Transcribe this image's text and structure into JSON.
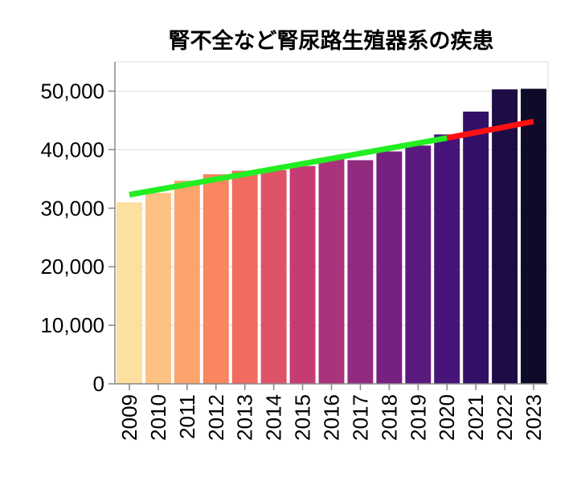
{
  "chart_data": {
    "type": "bar",
    "title": "腎不全など腎尿路生殖器系の疾患",
    "xlabel": "",
    "ylabel": "",
    "categories": [
      "2009",
      "2010",
      "2011",
      "2012",
      "2013",
      "2014",
      "2015",
      "2016",
      "2017",
      "2018",
      "2019",
      "2020",
      "2021",
      "2022",
      "2023"
    ],
    "values": [
      31000,
      32600,
      34700,
      35800,
      36400,
      36500,
      37200,
      38600,
      38200,
      39700,
      40700,
      42600,
      46500,
      50300,
      50400
    ],
    "ylim": [
      0,
      55000
    ],
    "yticks": [
      0,
      10000,
      20000,
      30000,
      40000,
      50000
    ],
    "ytick_labels": [
      "0",
      "10,000",
      "20,000",
      "30,000",
      "40,000",
      "50,000"
    ],
    "grid": true,
    "bar_colors": [
      "#fddf9f",
      "#fdc181",
      "#fca46c",
      "#f9865f",
      "#f16b60",
      "#de5368",
      "#c53c74",
      "#ab337b",
      "#922a80",
      "#762181",
      "#5c1a7e",
      "#471479",
      "#321067",
      "#1e0c44",
      "#0d0a2a"
    ],
    "trend_lines": [
      {
        "color": "#22ee22",
        "x_start": "2009",
        "x_end": "2020",
        "y_start": 32300,
        "y_end": 42000
      },
      {
        "color": "#ff1111",
        "x_start": "2020",
        "x_end": "2023",
        "y_start": 42000,
        "y_end": 44800
      }
    ]
  }
}
